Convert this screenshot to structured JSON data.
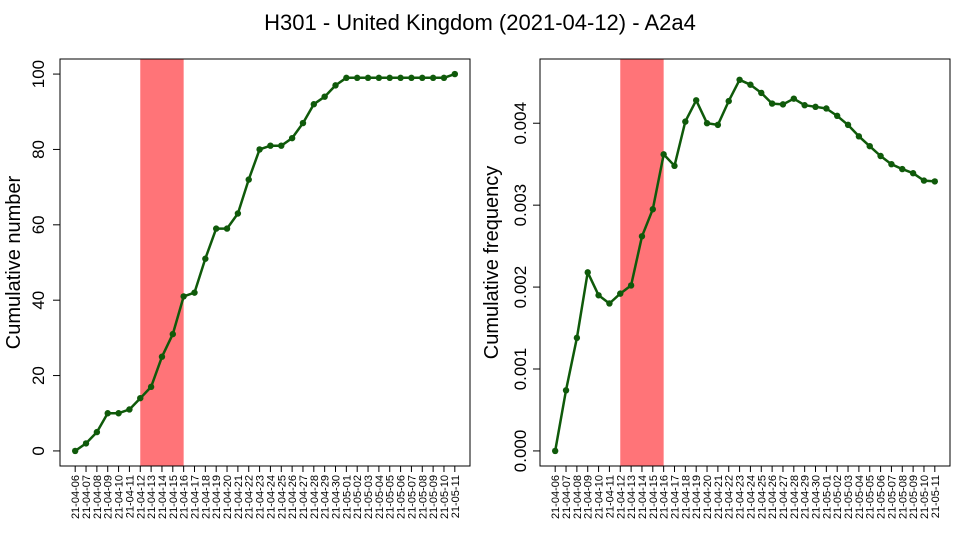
{
  "title": "H301 - United Kingdom (2021-04-12) - A2a4",
  "colors": {
    "line": "#0f5a0a",
    "highlight": "#ff7478",
    "axis": "#000000"
  },
  "chart_data": [
    {
      "type": "line",
      "ylabel": "Cumulative number",
      "xlabel": "",
      "ylim": [
        0,
        100
      ],
      "yticks": [
        "0",
        "20",
        "40",
        "60",
        "80",
        "100"
      ],
      "highlight_range": [
        "21-04-12",
        "21-04-16"
      ],
      "categories": [
        "21-04-06",
        "21-04-07",
        "21-04-08",
        "21-04-09",
        "21-04-10",
        "21-04-11",
        "21-04-12",
        "21-04-13",
        "21-04-14",
        "21-04-15",
        "21-04-16",
        "21-04-17",
        "21-04-18",
        "21-04-19",
        "21-04-20",
        "21-04-21",
        "21-04-22",
        "21-04-23",
        "21-04-24",
        "21-04-25",
        "21-04-26",
        "21-04-27",
        "21-04-28",
        "21-04-29",
        "21-04-30",
        "21-05-01",
        "21-05-02",
        "21-05-03",
        "21-05-04",
        "21-05-05",
        "21-05-06",
        "21-05-07",
        "21-05-08",
        "21-05-09",
        "21-05-10",
        "21-05-11"
      ],
      "values": [
        0,
        2,
        5,
        10,
        10,
        11,
        14,
        17,
        25,
        31,
        41,
        42,
        51,
        59,
        59,
        63,
        72,
        80,
        81,
        81,
        83,
        87,
        92,
        94,
        97,
        99,
        99,
        99,
        99,
        99,
        99,
        99,
        99,
        99,
        99,
        100
      ]
    },
    {
      "type": "line",
      "ylabel": "Cumulative frequency",
      "xlabel": "",
      "ylim": [
        0,
        0.0046
      ],
      "yticks": [
        "0.000",
        "0.001",
        "0.002",
        "0.003",
        "0.004"
      ],
      "highlight_range": [
        "21-04-12",
        "21-04-16"
      ],
      "categories": [
        "21-04-06",
        "21-04-07",
        "21-04-08",
        "21-04-09",
        "21-04-10",
        "21-04-11",
        "21-04-12",
        "21-04-13",
        "21-04-14",
        "21-04-15",
        "21-04-16",
        "21-04-17",
        "21-04-18",
        "21-04-19",
        "21-04-20",
        "21-04-21",
        "21-04-22",
        "21-04-23",
        "21-04-24",
        "21-04-25",
        "21-04-26",
        "21-04-27",
        "21-04-28",
        "21-04-29",
        "21-04-30",
        "21-05-01",
        "21-05-02",
        "21-05-03",
        "21-05-04",
        "21-05-05",
        "21-05-06",
        "21-05-07",
        "21-05-08",
        "21-05-09",
        "21-05-10",
        "21-05-11"
      ],
      "values": [
        0,
        0.00074,
        0.00138,
        0.00218,
        0.0019,
        0.0018,
        0.00192,
        0.00202,
        0.00262,
        0.00295,
        0.00362,
        0.00348,
        0.00402,
        0.00428,
        0.004,
        0.00398,
        0.00427,
        0.00453,
        0.00447,
        0.00437,
        0.00424,
        0.00423,
        0.0043,
        0.00422,
        0.0042,
        0.00418,
        0.00409,
        0.00398,
        0.00384,
        0.00372,
        0.0036,
        0.0035,
        0.00344,
        0.00339,
        0.0033,
        0.00329
      ]
    }
  ]
}
